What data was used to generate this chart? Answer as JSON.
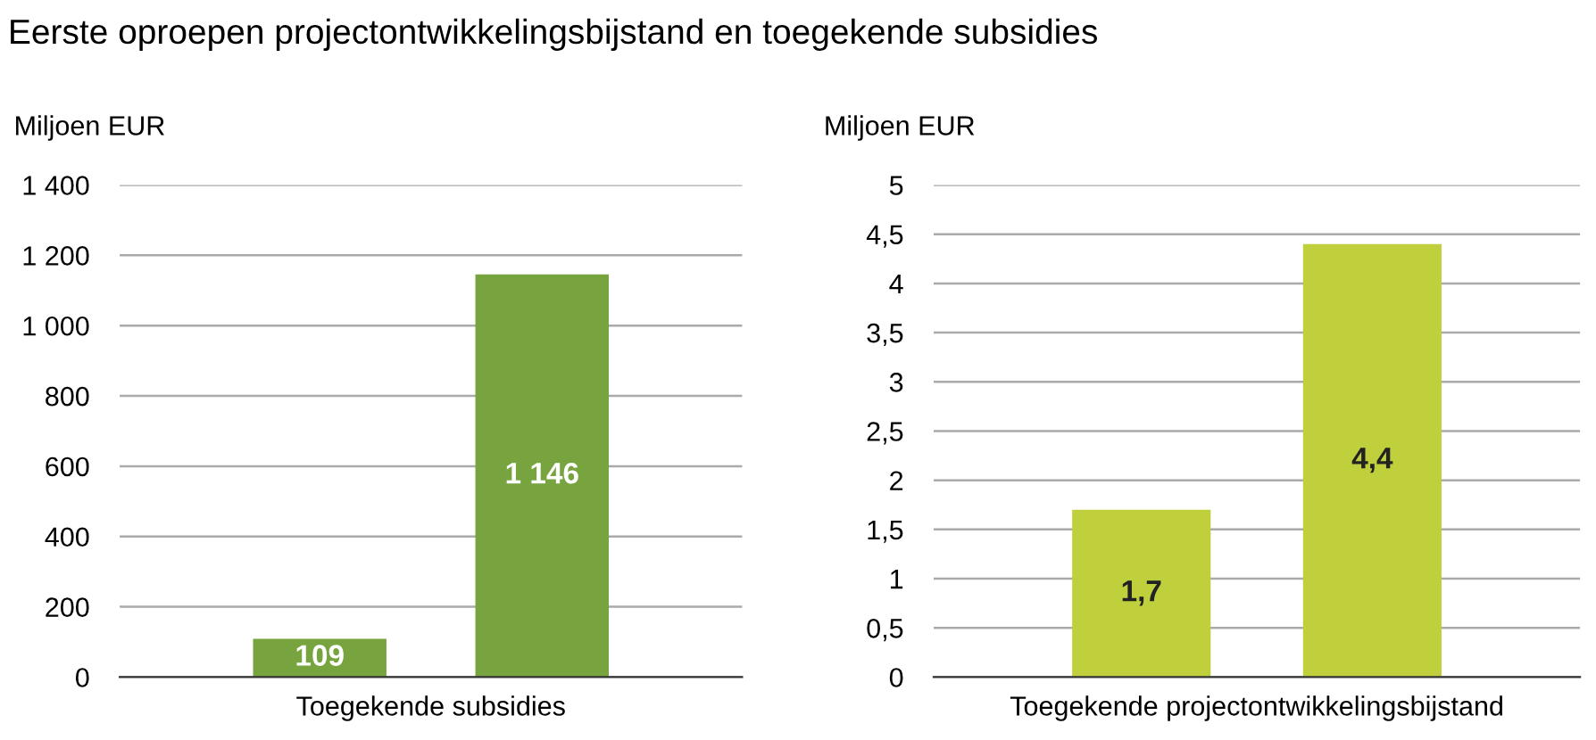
{
  "chart_data": [
    {
      "type": "bar",
      "title": "Eerste oproepen projectontwikkelingsbijstand en toegekende subsidies",
      "ylabel": "Miljoen EUR",
      "xlabel": "Toegekende subsidies",
      "categories": [
        null,
        null
      ],
      "values": [
        109,
        1146
      ],
      "value_labels": [
        "109",
        "1 146"
      ],
      "color": "#77a43f",
      "ylim": [
        0,
        1400
      ],
      "yticks": [
        0,
        200,
        400,
        600,
        800,
        {
          "value": 1000,
          "label": "1 000"
        },
        {
          "value": 1200,
          "label": "1 200"
        },
        {
          "value": 1400,
          "label": "1 400"
        }
      ],
      "grid": "y",
      "legend": false
    },
    {
      "type": "bar",
      "ylabel": "Miljoen EUR",
      "xlabel": "Toegekende projectontwikkelingsbijstand",
      "categories": [
        null,
        null
      ],
      "values": [
        1.7,
        4.4
      ],
      "value_labels": [
        "1,7",
        "4,4"
      ],
      "color": "#c0cf3c",
      "ylim": [
        0,
        5
      ],
      "yticks": [
        0,
        {
          "value": 0.5,
          "label": "0,5"
        },
        1,
        {
          "value": 1.5,
          "label": "1,5"
        },
        2,
        {
          "value": 2.5,
          "label": "2,5"
        },
        3,
        {
          "value": 3.5,
          "label": "3,5"
        },
        4,
        {
          "value": 4.5,
          "label": "4,5"
        },
        5
      ],
      "grid": "y",
      "legend": false
    }
  ]
}
